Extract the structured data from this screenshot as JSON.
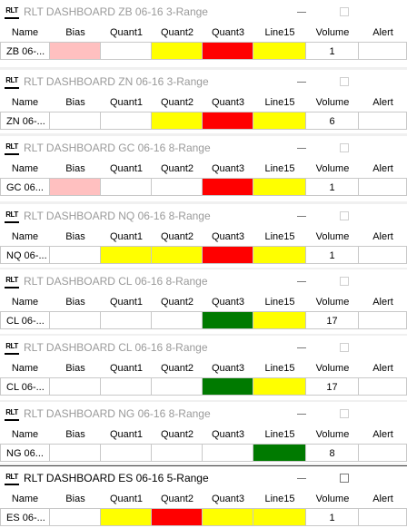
{
  "colors": {
    "red": "#ff0000",
    "yellow": "#ffff00",
    "green": "#007a00",
    "pink": "#ffc0c0",
    "white": "#ffffff"
  },
  "columns": [
    "Name",
    "Bias",
    "Quant1",
    "Quant2",
    "Quant3",
    "Line15",
    "Volume",
    "Alert"
  ],
  "windows": [
    {
      "title": "RLT DASHBOARD ZB 06-16 3-Range",
      "name": "ZB 06-...",
      "volume": "1",
      "active": false,
      "fills": [
        "white",
        "pink",
        "white",
        "yellow",
        "red",
        "yellow",
        "white",
        "white"
      ]
    },
    {
      "title": "RLT DASHBOARD ZN 06-16 3-Range",
      "name": "ZN 06-...",
      "volume": "6",
      "active": false,
      "fills": [
        "white",
        "white",
        "white",
        "yellow",
        "red",
        "yellow",
        "white",
        "white"
      ]
    },
    {
      "title": "RLT DASHBOARD GC 06-16 8-Range",
      "name": "GC 06...",
      "volume": "1",
      "active": false,
      "fills": [
        "white",
        "pink",
        "white",
        "white",
        "red",
        "yellow",
        "white",
        "white"
      ]
    },
    {
      "title": "RLT DASHBOARD NQ 06-16 8-Range",
      "name": "NQ 06-...",
      "volume": "1",
      "active": false,
      "fills": [
        "white",
        "white",
        "yellow",
        "yellow",
        "red",
        "yellow",
        "white",
        "white"
      ]
    },
    {
      "title": "RLT DASHBOARD CL 06-16 8-Range",
      "name": "CL 06-...",
      "volume": "17",
      "active": false,
      "fills": [
        "white",
        "white",
        "white",
        "white",
        "green",
        "yellow",
        "white",
        "white"
      ]
    },
    {
      "title": "RLT DASHBOARD CL 06-16 8-Range",
      "name": "CL 06-...",
      "volume": "17",
      "active": false,
      "fills": [
        "white",
        "white",
        "white",
        "white",
        "green",
        "yellow",
        "white",
        "white"
      ]
    },
    {
      "title": "RLT DASHBOARD NG 06-16 8-Range",
      "name": "NG 06...",
      "volume": "8",
      "active": false,
      "fills": [
        "white",
        "white",
        "white",
        "white",
        "white",
        "green",
        "white",
        "white"
      ]
    },
    {
      "title": "RLT DASHBOARD ES 06-16 5-Range",
      "name": "ES 06-...",
      "volume": "1",
      "active": true,
      "fills": [
        "white",
        "white",
        "yellow",
        "red",
        "yellow",
        "yellow",
        "white",
        "white"
      ]
    }
  ]
}
